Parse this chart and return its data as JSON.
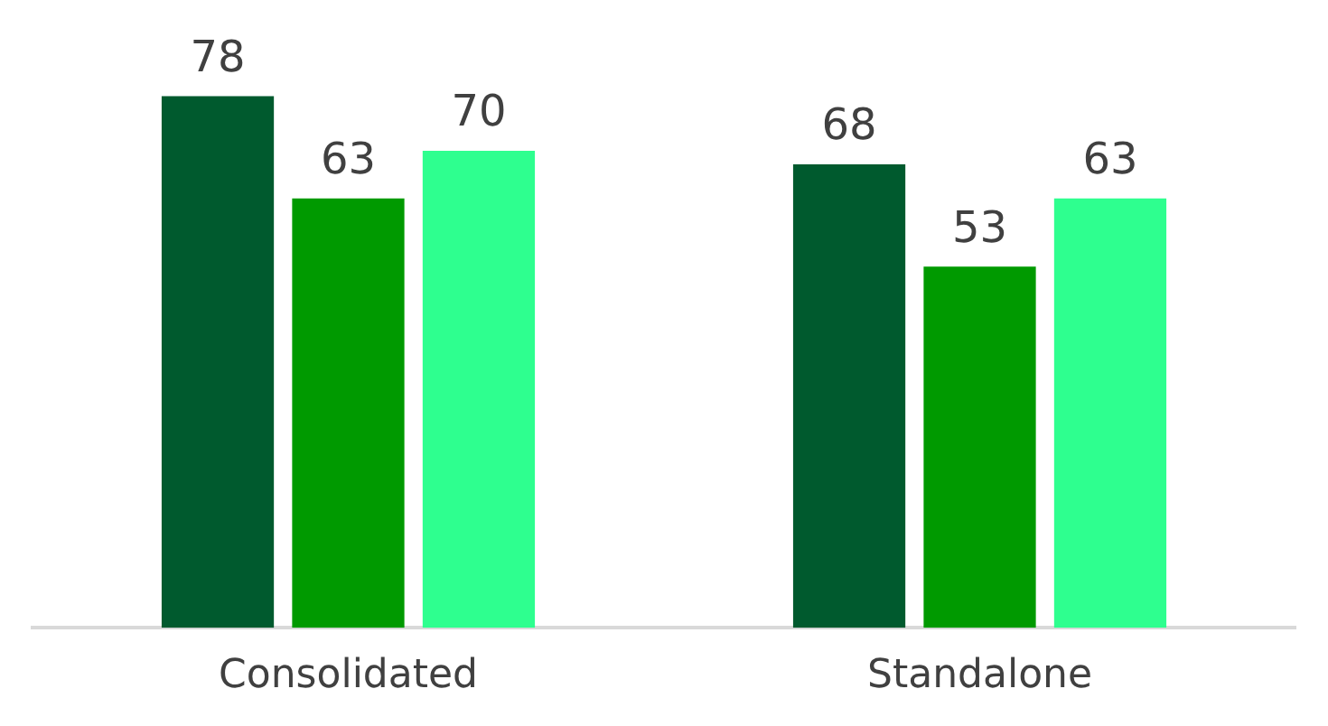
{
  "chart_data": {
    "type": "bar",
    "categories": [
      "Consolidated",
      "Standalone"
    ],
    "series": [
      {
        "color": "#005a2e",
        "values": [
          78,
          68
        ]
      },
      {
        "color": "#009a00",
        "values": [
          63,
          53
        ]
      },
      {
        "color": "#2eff8f",
        "values": [
          70,
          63
        ]
      }
    ],
    "data_labels": true,
    "grid": false,
    "legend": false
  }
}
